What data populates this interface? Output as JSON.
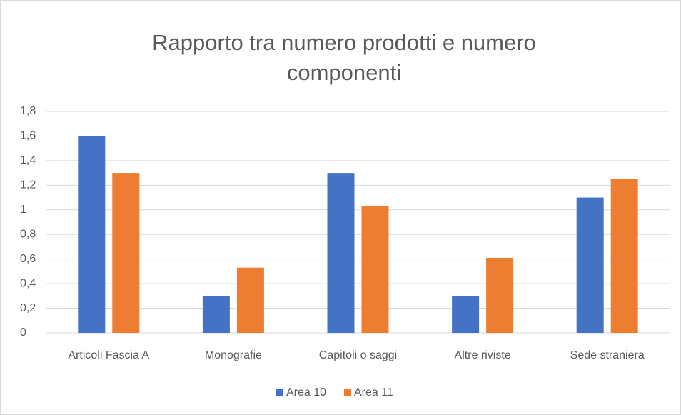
{
  "chart_data": {
    "type": "bar",
    "title": [
      "Rapporto tra numero prodotti e numero",
      "componenti"
    ],
    "categories": [
      "Articoli Fascia A",
      "Monografie",
      "Capitoli o saggi",
      "Altre riviste",
      "Sede straniera"
    ],
    "series": [
      {
        "name": "Area 10",
        "color": "#4472c4",
        "values": [
          1.6,
          0.3,
          1.3,
          0.3,
          1.1
        ]
      },
      {
        "name": "Area 11",
        "color": "#ed7d31",
        "values": [
          1.3,
          0.53,
          1.03,
          0.61,
          1.25
        ]
      }
    ],
    "ylim": [
      0,
      1.8
    ],
    "yticks": [
      0,
      {
        "value": 0.2,
        "label": "0,2"
      },
      {
        "value": 0.4,
        "label": "0,4"
      },
      {
        "value": 0.6,
        "label": "0,6"
      },
      {
        "value": 0.8,
        "label": "0,8"
      },
      1,
      {
        "value": 1.2,
        "label": "1,2"
      },
      {
        "value": 1.4,
        "label": "1,4"
      },
      {
        "value": 1.6,
        "label": "1,6"
      },
      {
        "value": 1.8,
        "label": "1,8"
      }
    ],
    "grid": true,
    "legend": "bottom"
  }
}
